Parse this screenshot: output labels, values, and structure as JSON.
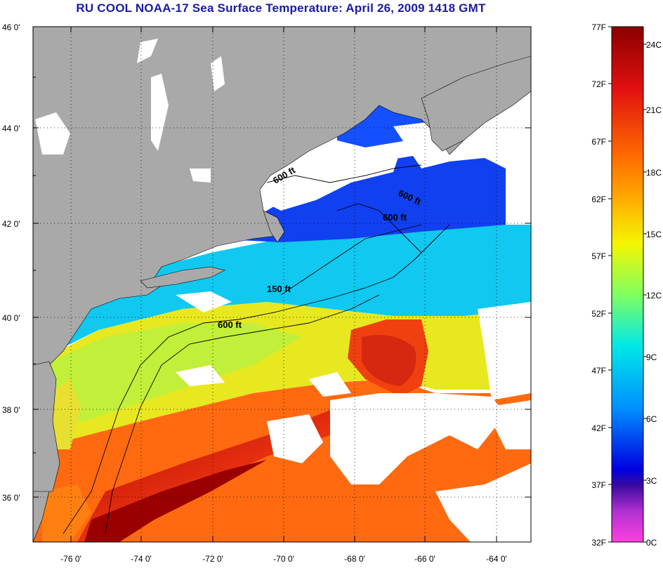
{
  "title": "RU COOL  NOAA-17  Sea Surface Temperature:  April 26, 2009 1418 GMT",
  "latitude_ticks": [
    "46 0'",
    "44 0'",
    "42 0'",
    "40 0'",
    "38 0'",
    "36 0'"
  ],
  "longitude_ticks": [
    "-76 0'",
    "-74 0'",
    "-72 0'",
    "-70 0'",
    "-68 0'",
    "-66 0'",
    "-64 0'"
  ],
  "isobaths": [
    "600 ft",
    "600 ft",
    "600 ft",
    "150 ft",
    "600 ft"
  ],
  "colorbar": {
    "fahrenheit": [
      "77F",
      "72F",
      "67F",
      "62F",
      "57F",
      "52F",
      "47F",
      "42F",
      "37F",
      "32F"
    ],
    "celsius": [
      "24C",
      "21C",
      "18C",
      "15C",
      "12C",
      "9C",
      "6C",
      "3C",
      "0C"
    ]
  },
  "colors": {
    "land": "#a9a9a9",
    "cloud": "#ffffff",
    "title": "#1a1aa6"
  }
}
